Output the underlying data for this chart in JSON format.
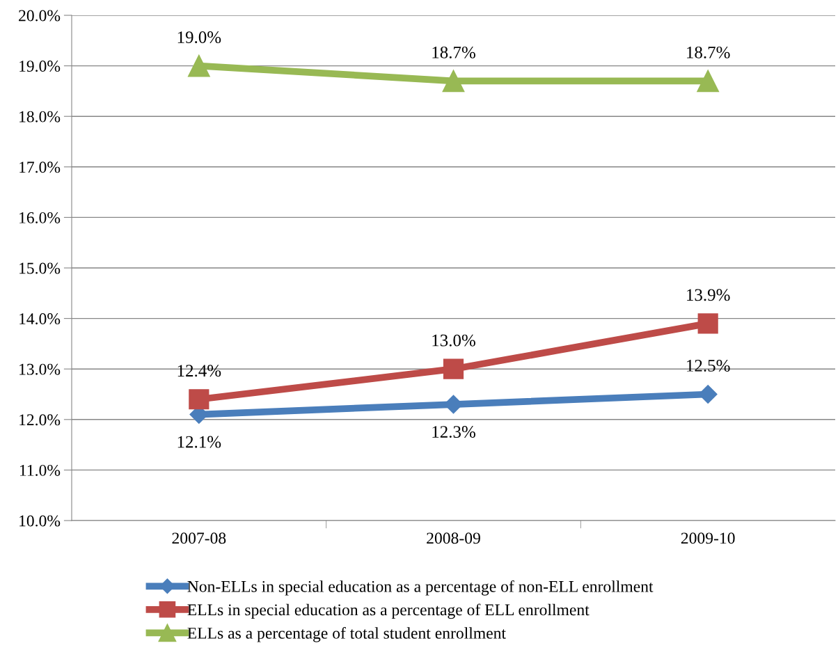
{
  "chart_data": {
    "type": "line",
    "categories": [
      "2007-08",
      "2008-09",
      "2009-10"
    ],
    "series": [
      {
        "name": "Non-ELLs in special education as a percentage of non-ELL enrollment",
        "color": "#4a7ebb",
        "marker": "diamond",
        "values": [
          12.1,
          12.3,
          12.5
        ],
        "value_labels": [
          "12.1%",
          "12.3%",
          "12.5%"
        ]
      },
      {
        "name": "ELLs in special education as a percentage of ELL enrollment",
        "color": "#be4b48",
        "marker": "square",
        "values": [
          12.4,
          13.0,
          13.9
        ],
        "value_labels": [
          "12.4%",
          "13.0%",
          "13.9%"
        ]
      },
      {
        "name": "ELLs as a percentage of total student enrollment",
        "color": "#98b954",
        "marker": "triangle",
        "values": [
          19.0,
          18.7,
          18.7
        ],
        "value_labels": [
          "19.0%",
          "18.7%",
          "18.7%"
        ]
      }
    ],
    "ylim": [
      10,
      20
    ],
    "yticks": [
      {
        "value": 10,
        "label": "10.0%"
      },
      {
        "value": 11,
        "label": "11.0%"
      },
      {
        "value": 12,
        "label": "12.0%"
      },
      {
        "value": 13,
        "label": "13.0%"
      },
      {
        "value": 14,
        "label": "14.0%"
      },
      {
        "value": 15,
        "label": "15.0%"
      },
      {
        "value": 16,
        "label": "16.0%"
      },
      {
        "value": 17,
        "label": "17.0%"
      },
      {
        "value": 18,
        "label": "18.0%"
      },
      {
        "value": 19,
        "label": "19.0%"
      },
      {
        "value": 20,
        "label": "20.0%"
      }
    ],
    "grid": "y",
    "legend": "bottom",
    "line_style": "solid"
  }
}
